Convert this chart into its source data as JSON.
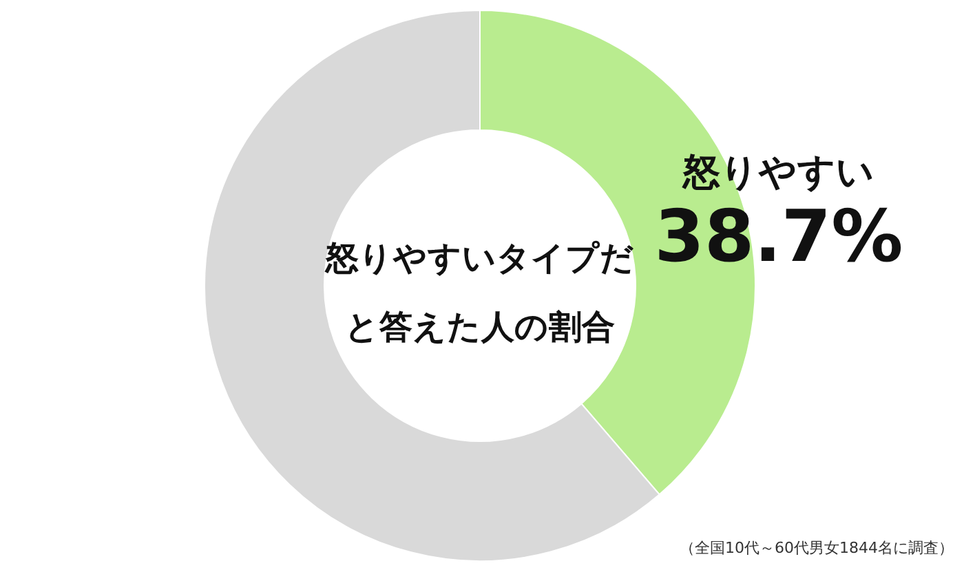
{
  "chart_data": {
    "type": "donut",
    "title": "怒りやすいタイプだと答えた人の割合",
    "categories": [
      "怒りやすい",
      null
    ],
    "values": [
      38.7,
      61.3
    ],
    "colors": [
      "#b9ec8f",
      "#d9d9d9"
    ],
    "value_labels": [
      "38.7%",
      null
    ],
    "annotations": [
      "（全国10代～60代男女1844名に調査）"
    ]
  }
}
